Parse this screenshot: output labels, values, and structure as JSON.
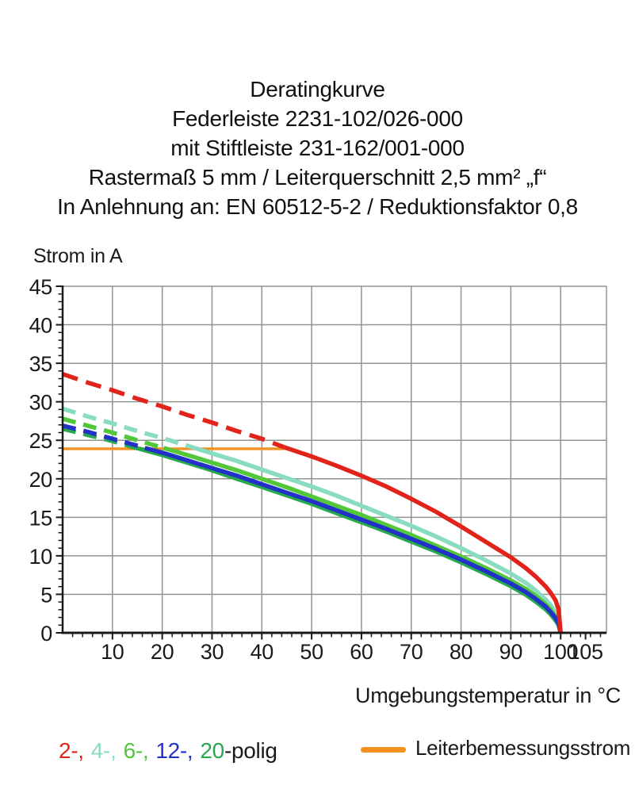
{
  "chart_data": {
    "type": "line",
    "title_lines": [
      "Deratingkurve",
      "Federleiste 2231-102/026-000",
      "mit Stiftleiste 231-162/001-000",
      "Rastermaß 5 mm / Leiterquerschnitt 2,5 mm² „f“",
      "In Anlehnung an: EN 60512-5-2 / Reduktionsfaktor 0,8"
    ],
    "x_axis": {
      "label": "Umgebungstemperatur in °C",
      "min": 0,
      "max": 105,
      "frame_max": 109.2,
      "gridline_step": 10,
      "major_tick_step": 10,
      "minor_tick_step": 2,
      "extra_major_ticks": [
        105
      ],
      "tick_labels": [
        "10",
        "20",
        "30",
        "40",
        "50",
        "60",
        "70",
        "80",
        "90",
        "100",
        "105"
      ]
    },
    "y_axis": {
      "label": "Strom in A",
      "min": 0,
      "max": 45,
      "gridline_step": 5,
      "major_tick_step": 5,
      "minor_tick_step": 1,
      "tick_labels": [
        "0",
        "5",
        "10",
        "15",
        "20",
        "25",
        "30",
        "35",
        "40",
        "45"
      ]
    },
    "grid": true,
    "grid_color": "#8e968e",
    "axis_color": "#1a1a1a",
    "series": [
      {
        "name": "Leiterbemessungsstrom",
        "color": "#f29120",
        "width": 3.4,
        "dash_until_x": null,
        "points": [
          [
            0,
            23.9
          ],
          [
            44.5,
            23.9
          ]
        ]
      },
      {
        "name": "4-polig",
        "color": "#89dcc1",
        "width": 5.5,
        "dash_until_x": 26.5,
        "dash": "17 10",
        "points": [
          [
            0,
            29.1
          ],
          [
            5,
            28.1
          ],
          [
            10,
            27.2
          ],
          [
            15,
            26.2
          ],
          [
            20,
            25.3
          ],
          [
            25,
            24.3
          ],
          [
            26.5,
            24.0
          ],
          [
            30,
            23.3
          ],
          [
            35,
            22.3
          ],
          [
            40,
            21.2
          ],
          [
            45,
            20.1
          ],
          [
            50,
            19.0
          ],
          [
            55,
            17.8
          ],
          [
            60,
            16.5
          ],
          [
            65,
            15.2
          ],
          [
            70,
            13.9
          ],
          [
            75,
            12.5
          ],
          [
            80,
            11.0
          ],
          [
            85,
            9.4
          ],
          [
            90,
            7.7
          ],
          [
            93,
            6.5
          ],
          [
            95,
            5.5
          ],
          [
            97,
            4.3
          ],
          [
            98,
            3.6
          ],
          [
            99,
            2.6
          ],
          [
            99.6,
            1.7
          ],
          [
            100,
            0
          ]
        ]
      },
      {
        "name": "6-polig",
        "color": "#52c73a",
        "width": 5.5,
        "dash_until_x": 20.3,
        "dash": "17 10",
        "points": [
          [
            0,
            27.8
          ],
          [
            5,
            26.9
          ],
          [
            10,
            26.0
          ],
          [
            15,
            25.0
          ],
          [
            20,
            24.05
          ],
          [
            20.3,
            24.0
          ],
          [
            25,
            23.1
          ],
          [
            30,
            22.1
          ],
          [
            35,
            21.1
          ],
          [
            40,
            20.0
          ],
          [
            45,
            18.9
          ],
          [
            50,
            17.7
          ],
          [
            55,
            16.5
          ],
          [
            60,
            15.3
          ],
          [
            65,
            14.0
          ],
          [
            70,
            12.7
          ],
          [
            75,
            11.3
          ],
          [
            80,
            9.9
          ],
          [
            85,
            8.4
          ],
          [
            90,
            6.8
          ],
          [
            93,
            5.7
          ],
          [
            95,
            4.8
          ],
          [
            97,
            3.7
          ],
          [
            98,
            3.0
          ],
          [
            99,
            2.1
          ],
          [
            99.6,
            1.4
          ],
          [
            100,
            0
          ]
        ]
      },
      {
        "name": "20-polig",
        "color": "#28a94c",
        "width": 5.5,
        "dash_until_x": 14.8,
        "dash": "17 10",
        "points": [
          [
            0,
            26.5
          ],
          [
            5,
            25.7
          ],
          [
            10,
            24.9
          ],
          [
            14.8,
            24.0
          ],
          [
            20,
            23.1
          ],
          [
            25,
            22.1
          ],
          [
            30,
            21.1
          ],
          [
            35,
            20.0
          ],
          [
            40,
            18.95
          ],
          [
            45,
            17.85
          ],
          [
            50,
            16.75
          ],
          [
            55,
            15.55
          ],
          [
            60,
            14.35
          ],
          [
            65,
            13.15
          ],
          [
            70,
            11.85
          ],
          [
            75,
            10.55
          ],
          [
            80,
            9.15
          ],
          [
            85,
            7.65
          ],
          [
            90,
            6.05
          ],
          [
            93,
            4.95
          ],
          [
            95,
            4.05
          ],
          [
            97,
            3.05
          ],
          [
            98,
            2.4
          ],
          [
            99,
            1.6
          ],
          [
            99.6,
            1.0
          ],
          [
            100,
            0
          ]
        ]
      },
      {
        "name": "12-polig",
        "color": "#2231c8",
        "width": 5.5,
        "dash_until_x": 16.5,
        "dash": "17 10",
        "points": [
          [
            0,
            26.9
          ],
          [
            5,
            26.1
          ],
          [
            10,
            25.2
          ],
          [
            15,
            24.3
          ],
          [
            16.5,
            24.0
          ],
          [
            20,
            23.4
          ],
          [
            25,
            22.4
          ],
          [
            30,
            21.4
          ],
          [
            35,
            20.4
          ],
          [
            40,
            19.3
          ],
          [
            45,
            18.2
          ],
          [
            50,
            17.1
          ],
          [
            55,
            15.9
          ],
          [
            60,
            14.7
          ],
          [
            65,
            13.5
          ],
          [
            70,
            12.2
          ],
          [
            75,
            10.9
          ],
          [
            80,
            9.5
          ],
          [
            85,
            8.0
          ],
          [
            90,
            6.4
          ],
          [
            93,
            5.3
          ],
          [
            95,
            4.4
          ],
          [
            97,
            3.4
          ],
          [
            98,
            2.7
          ],
          [
            99,
            1.9
          ],
          [
            99.6,
            1.2
          ],
          [
            100,
            0
          ]
        ]
      },
      {
        "name": "2-polig",
        "color": "#e2231a",
        "width": 5.5,
        "dash_until_x": 44.5,
        "dash": "20 11",
        "points": [
          [
            0,
            33.6
          ],
          [
            5,
            32.5
          ],
          [
            10,
            31.5
          ],
          [
            15,
            30.4
          ],
          [
            20,
            29.4
          ],
          [
            25,
            28.3
          ],
          [
            30,
            27.3
          ],
          [
            35,
            26.2
          ],
          [
            40,
            25.2
          ],
          [
            44.5,
            24.1
          ],
          [
            50,
            22.9
          ],
          [
            55,
            21.7
          ],
          [
            60,
            20.4
          ],
          [
            65,
            19.0
          ],
          [
            70,
            17.4
          ],
          [
            75,
            15.7
          ],
          [
            80,
            13.8
          ],
          [
            85,
            11.8
          ],
          [
            90,
            9.8
          ],
          [
            93,
            8.4
          ],
          [
            95,
            7.3
          ],
          [
            97,
            6.0
          ],
          [
            98,
            5.2
          ],
          [
            99,
            4.2
          ],
          [
            99.6,
            3.0
          ],
          [
            100,
            0
          ]
        ]
      }
    ],
    "legend_position": "bottom"
  },
  "legend": {
    "poles": {
      "items": [
        {
          "text": "2-,",
          "color": "#e2231a"
        },
        {
          "text": "4-,",
          "color": "#89dcc1"
        },
        {
          "text": "6-,",
          "color": "#52c73a"
        },
        {
          "text": "12-,",
          "color": "#2231c8"
        },
        {
          "text": "20",
          "color": "#28a94c"
        }
      ],
      "suffix": "-polig",
      "suffix_color": "#1a1a1a"
    },
    "rated": {
      "label": "Leiterbemessungsstrom",
      "color": "#f29120"
    }
  }
}
